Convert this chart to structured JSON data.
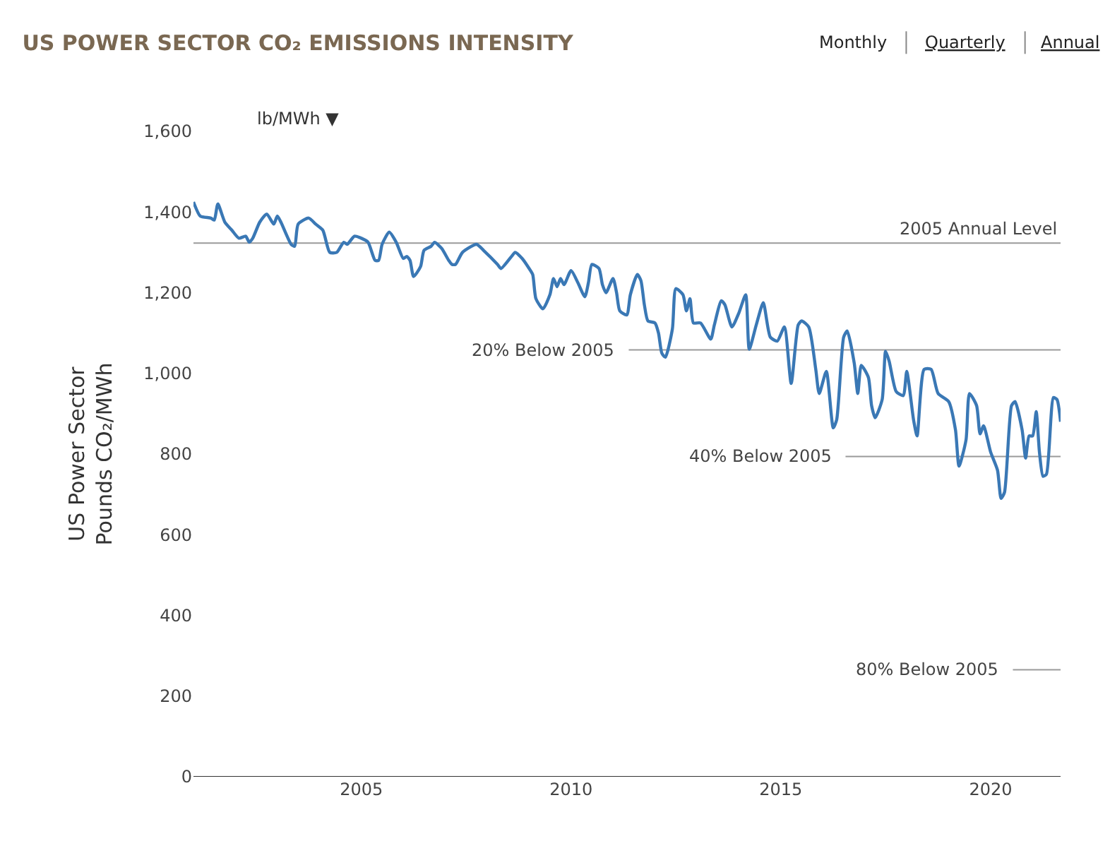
{
  "chart_data": {
    "type": "line",
    "title": "US POWER SECTOR CO₂ EMISSIONS INTENSITY",
    "ylabel": "US Power Sector\nPounds CO₂/MWh",
    "annotations": [
      "lb/MWh ▼",
      "Monthly",
      "Quarterly",
      "Annual"
    ],
    "x": [
      "2001-01",
      "2001-03",
      "2001-06",
      "2001-07",
      "2001-08",
      "2001-10",
      "2001-12",
      "2002-02",
      "2002-04",
      "2002-05",
      "2002-06",
      "2002-08",
      "2002-10",
      "2002-12",
      "2003-01",
      "2003-02",
      "2003-05",
      "2003-06",
      "2003-07",
      "2003-10",
      "2003-12",
      "2004-02",
      "2004-04",
      "2004-06",
      "2004-08",
      "2004-09",
      "2004-11",
      "2005-01",
      "2005-03",
      "2005-05",
      "2005-06",
      "2005-07",
      "2005-09",
      "2005-11",
      "2006-01",
      "2006-02",
      "2006-03",
      "2006-04",
      "2006-06",
      "2006-07",
      "2006-09",
      "2006-10",
      "2006-12",
      "2007-02",
      "2007-03",
      "2007-04",
      "2007-06",
      "2007-10",
      "2007-12",
      "2008-04",
      "2008-05",
      "2008-08",
      "2008-09",
      "2008-11",
      "2009-01",
      "2009-02",
      "2009-03",
      "2009-05",
      "2009-07",
      "2009-08",
      "2009-09",
      "2009-10",
      "2009-11",
      "2010-01",
      "2010-03",
      "2010-05",
      "2010-06",
      "2010-07",
      "2010-09",
      "2010-10",
      "2010-11",
      "2011-01",
      "2011-02",
      "2011-03",
      "2011-05",
      "2011-06",
      "2011-08",
      "2011-09",
      "2011-10",
      "2011-11",
      "2012-01",
      "2012-02",
      "2012-03",
      "2012-04",
      "2012-06",
      "2012-07",
      "2012-09",
      "2012-10",
      "2012-11",
      "2012-12",
      "2013-02",
      "2013-05",
      "2013-06",
      "2013-08",
      "2013-09",
      "2013-11",
      "2014-01",
      "2014-03",
      "2014-04",
      "2014-06",
      "2014-08",
      "2014-10",
      "2014-12",
      "2015-02",
      "2015-04",
      "2015-06",
      "2015-07",
      "2015-09",
      "2015-11",
      "2015-12",
      "2016-02",
      "2016-04",
      "2016-05",
      "2016-07",
      "2016-08",
      "2016-10",
      "2016-11",
      "2016-12",
      "2017-02",
      "2017-03",
      "2017-04",
      "2017-06",
      "2017-07",
      "2017-08",
      "2017-10",
      "2017-12",
      "2018-01",
      "2018-03",
      "2018-04",
      "2018-06",
      "2018-08",
      "2018-10",
      "2019-01",
      "2019-03",
      "2019-04",
      "2019-06",
      "2019-07",
      "2019-09",
      "2019-10",
      "2019-11",
      "2020-01",
      "2020-03",
      "2020-04",
      "2020-05",
      "2020-07",
      "2020-08",
      "2020-10",
      "2020-11",
      "2020-12",
      "2021-01",
      "2021-02",
      "2021-03",
      "2021-04",
      "2021-05",
      "2021-07",
      "2021-08",
      "2021-09"
    ],
    "series": [
      {
        "color": "#3a78b5",
        "values": [
          1425,
          1390,
          1385,
          1380,
          1420,
          1375,
          1355,
          1335,
          1340,
          1325,
          1335,
          1375,
          1395,
          1370,
          1390,
          1375,
          1320,
          1315,
          1370,
          1385,
          1370,
          1355,
          1300,
          1300,
          1325,
          1320,
          1340,
          1335,
          1325,
          1280,
          1280,
          1320,
          1350,
          1325,
          1285,
          1290,
          1280,
          1240,
          1265,
          1305,
          1315,
          1325,
          1310,
          1280,
          1270,
          1270,
          1300,
          1320,
          1305,
          1270,
          1260,
          1290,
          1300,
          1285,
          1260,
          1245,
          1185,
          1160,
          1195,
          1235,
          1215,
          1235,
          1220,
          1255,
          1225,
          1190,
          1225,
          1270,
          1260,
          1220,
          1200,
          1235,
          1200,
          1155,
          1145,
          1195,
          1245,
          1230,
          1170,
          1130,
          1125,
          1100,
          1050,
          1040,
          1110,
          1210,
          1195,
          1155,
          1185,
          1125,
          1125,
          1085,
          1120,
          1180,
          1170,
          1115,
          1150,
          1195,
          1060,
          1120,
          1175,
          1090,
          1080,
          1115,
          975,
          1120,
          1130,
          1115,
          1010,
          950,
          1005,
          865,
          885,
          1090,
          1105,
          1025,
          950,
          1020,
          990,
          920,
          890,
          935,
          1055,
          1030,
          955,
          945,
          1005,
          885,
          845,
          1010,
          1010,
          950,
          930,
          860,
          770,
          835,
          950,
          920,
          850,
          870,
          805,
          760,
          690,
          705,
          920,
          930,
          860,
          790,
          845,
          845,
          905,
          805,
          745,
          750,
          940,
          935,
          880
        ]
      }
    ],
    "xlim": [
      "2001-01",
      "2021-09"
    ],
    "xticks": [
      "2005",
      "2010",
      "2015",
      "2020"
    ],
    "ylim": [
      0,
      1600
    ],
    "yticks": [
      0,
      {
        "value": 200,
        "label": "200"
      },
      {
        "value": 400,
        "label": "400"
      },
      {
        "value": 600,
        "label": "600"
      },
      {
        "value": 800,
        "label": "800"
      },
      {
        "value": 1000,
        "label": "1,000"
      },
      {
        "value": 1200,
        "label": "1,200"
      },
      {
        "value": 1400,
        "label": "1,400"
      },
      {
        "value": 1600,
        "label": "1,600"
      }
    ],
    "ref_lines": [
      {
        "axis": "y",
        "value": 1323,
        "label": "2005 Annual Level",
        "color": "#9a9a9a"
      },
      {
        "axis": "y",
        "value": 1058,
        "label": "20% Below 2005",
        "color": "#9a9a9a"
      },
      {
        "axis": "y",
        "value": 794,
        "label": "40% Below 2005",
        "color": "#9a9a9a"
      },
      {
        "axis": "y",
        "value": 265,
        "label": "80% Below 2005",
        "color": "#9a9a9a"
      }
    ],
    "grid": false,
    "marker": "none",
    "line_style": "solid"
  }
}
